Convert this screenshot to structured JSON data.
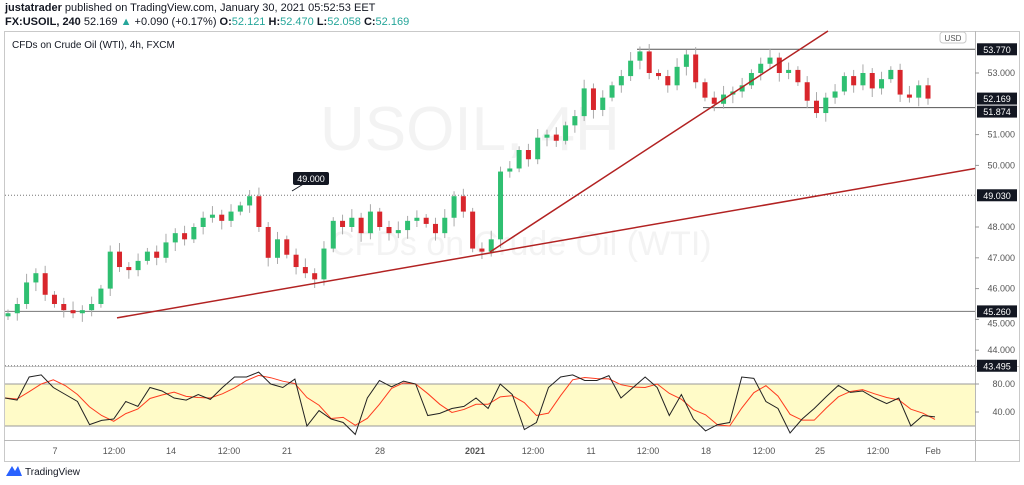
{
  "header": {
    "author": "justatrader",
    "published": "published on TradingView.com, January 30, 2021 05:52:53 EET",
    "symbol": "FX:USOIL, 240",
    "last": "52.169",
    "change": "+0.090 (+0.17%)",
    "o_label": "O:",
    "o": "52.121",
    "h_label": "H:",
    "h": "52.470",
    "l_label": "L:",
    "l": "52.058",
    "c_label": "C:",
    "c": "52.169"
  },
  "chart_title": "CFDs on Crude Oil (WTI), 4h, FXCM",
  "watermark": {
    "symbol": "USOIL, 4H",
    "description": "CFDs on Crude Oil (WTI)"
  },
  "currency": "USD",
  "footer": {
    "brand": "TradingView"
  },
  "colors": {
    "up": "#2fbf71",
    "down": "#d8262c",
    "trendline": "#b22222",
    "stoch_k": "#222222",
    "stoch_d": "#ff3b1f",
    "stoch_band": "#fffbc8"
  },
  "chart_data": [
    {
      "type": "candlestick",
      "title": "CFDs on Crude Oil (WTI), 4h, FXCM",
      "ylim": [
        43.4,
        54.3
      ],
      "y_ticks": [
        "53.000",
        "51.000",
        "50.000",
        "48.000",
        "47.000",
        "46.000",
        "45.000",
        "44.000"
      ],
      "price_labels": [
        {
          "text": "53.770",
          "value": 53.77,
          "line": "solid-right"
        },
        {
          "text": "52.169",
          "value": 52.169,
          "line": "none"
        },
        {
          "text": "51.874",
          "value": 51.874,
          "line": "solid-right"
        },
        {
          "text": "49.030",
          "value": 49.03,
          "line": "dotted"
        },
        {
          "text": "45.260",
          "value": 45.26,
          "line": "solid"
        },
        {
          "text": "43.495",
          "value": 43.495,
          "line": "dotted"
        }
      ],
      "callout": {
        "text": "49.000",
        "value": 49.0
      },
      "x_ticks": [
        "7",
        "12:00",
        "14",
        "12:00",
        "21",
        "28",
        "2021",
        "12:00",
        "11",
        "12:00",
        "18",
        "12:00",
        "25",
        "12:00",
        "Feb"
      ],
      "closes": [
        45.2,
        45.5,
        46.2,
        46.5,
        45.8,
        45.5,
        45.3,
        45.2,
        45.3,
        45.5,
        46.0,
        47.2,
        46.7,
        46.6,
        46.9,
        47.2,
        47.0,
        47.5,
        47.8,
        47.6,
        48.0,
        48.3,
        48.4,
        48.2,
        48.5,
        48.7,
        49.0,
        48.0,
        47.0,
        47.6,
        47.1,
        46.7,
        46.5,
        46.3,
        47.3,
        48.2,
        48.0,
        48.3,
        47.8,
        48.5,
        48.0,
        47.8,
        47.9,
        48.2,
        48.3,
        48.1,
        47.8,
        48.3,
        49.0,
        48.5,
        47.3,
        47.2,
        47.6,
        49.8,
        49.9,
        50.5,
        50.2,
        50.9,
        51.0,
        50.8,
        51.3,
        51.6,
        52.5,
        51.8,
        52.2,
        52.6,
        52.9,
        53.4,
        53.7,
        53.0,
        52.9,
        52.6,
        53.2,
        53.6,
        52.7,
        52.2,
        52.0,
        52.3,
        52.4,
        52.6,
        53.0,
        53.3,
        53.5,
        53.0,
        53.1,
        52.7,
        52.1,
        51.7,
        52.2,
        52.4,
        52.9,
        52.6,
        53.0,
        52.5,
        52.8,
        53.1,
        52.3,
        52.2,
        52.6,
        52.169
      ],
      "trendlines": [
        {
          "from_price": 45.05,
          "to_price": 49.9
        },
        {
          "from_price": 47.19,
          "to_price": 54.3
        }
      ]
    },
    {
      "type": "line",
      "title": "",
      "ylim": [
        0,
        100
      ],
      "y_ticks": [
        "80.00",
        "40.00"
      ],
      "band": [
        20,
        80
      ],
      "series": [
        {
          "values": [
            60,
            57,
            90,
            93,
            75,
            65,
            55,
            22,
            28,
            30,
            55,
            48,
            75,
            70,
            60,
            57,
            65,
            58,
            75,
            90,
            90,
            97,
            80,
            75,
            87,
            20,
            42,
            30,
            25,
            8,
            60,
            85,
            76,
            84,
            80,
            35,
            38,
            45,
            48,
            60,
            45,
            80,
            65,
            15,
            25,
            75,
            90,
            93,
            85,
            85,
            92,
            60,
            75,
            90,
            75,
            35,
            65,
            30,
            13,
            22,
            25,
            90,
            88,
            55,
            45,
            10,
            30,
            45,
            62,
            78,
            68,
            70,
            60,
            52,
            60,
            20,
            35,
            33
          ]
        }
      ]
    }
  ]
}
